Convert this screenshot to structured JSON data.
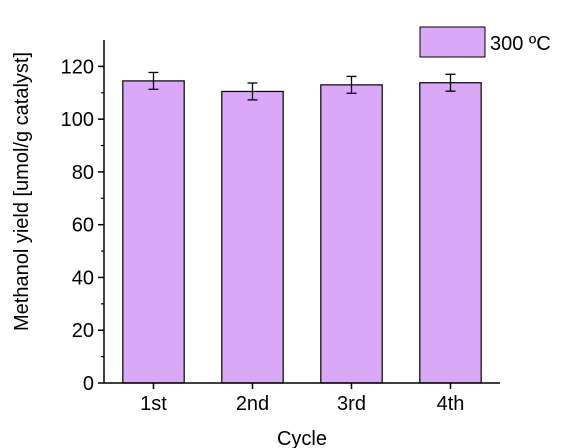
{
  "chart_data": {
    "type": "bar",
    "title": "",
    "xlabel": "Cycle",
    "ylabel": "Methanol yield [umol/g catalyst]",
    "categories": [
      "1st",
      "2nd",
      "3rd",
      "4th"
    ],
    "series": [
      {
        "name": "300 ºC",
        "values": [
          114.5,
          110.5,
          113,
          113.8
        ],
        "errors": [
          3.2,
          3.2,
          3.2,
          3.2
        ],
        "color": "#d9a9f7"
      }
    ],
    "ylim": [
      0,
      130
    ],
    "yticks": [
      0,
      20,
      40,
      60,
      80,
      100,
      120
    ],
    "grid": false,
    "legend_position": "top-right"
  }
}
